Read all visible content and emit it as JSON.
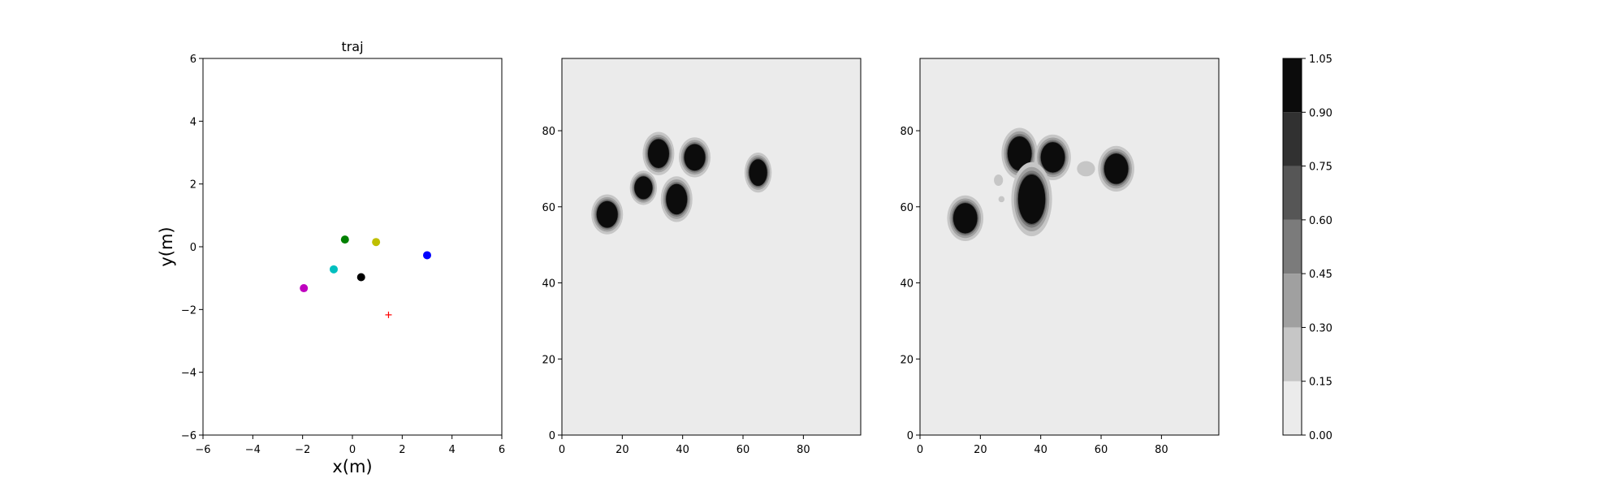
{
  "chart_data": [
    {
      "type": "scatter",
      "title": "traj",
      "xlabel": "x(m)",
      "ylabel": "y(m)",
      "xlim": [
        -6,
        6
      ],
      "ylim": [
        -6,
        6
      ],
      "xticks": [
        "−6",
        "−4",
        "−2",
        "0",
        "2",
        "4",
        "6"
      ],
      "yticks": [
        "−6",
        "−4",
        "−2",
        "0",
        "2",
        "4",
        "6"
      ],
      "grid": false,
      "points": [
        {
          "x": -0.3,
          "y": 0.23,
          "color": "#008000",
          "marker": "circle"
        },
        {
          "x": 0.95,
          "y": 0.15,
          "color": "#bfbf00",
          "marker": "circle"
        },
        {
          "x": 3.0,
          "y": -0.27,
          "color": "#0000ff",
          "marker": "circle"
        },
        {
          "x": -0.75,
          "y": -0.72,
          "color": "#00bfbf",
          "marker": "circle"
        },
        {
          "x": 0.35,
          "y": -0.97,
          "color": "#000000",
          "marker": "circle"
        },
        {
          "x": -1.95,
          "y": -1.32,
          "color": "#bf00bf",
          "marker": "circle"
        },
        {
          "x": 1.45,
          "y": -2.17,
          "color": "#ff0000",
          "marker": "plus"
        }
      ]
    },
    {
      "type": "heatmap",
      "title": "",
      "xlim": [
        0,
        99
      ],
      "ylim": [
        0,
        99
      ],
      "xticks": [
        "0",
        "20",
        "40",
        "60",
        "80"
      ],
      "yticks": [
        "0",
        "20",
        "40",
        "60",
        "80"
      ],
      "background_value": 0.05,
      "blobs": [
        {
          "x": 15,
          "y": 58,
          "rx": 3.5,
          "ry": 3.5,
          "value": 1.0
        },
        {
          "x": 27,
          "y": 65,
          "rx": 3.0,
          "ry": 3.0,
          "value": 1.0
        },
        {
          "x": 32,
          "y": 74,
          "rx": 3.5,
          "ry": 3.8,
          "value": 1.0
        },
        {
          "x": 38,
          "y": 62,
          "rx": 3.5,
          "ry": 4.0,
          "value": 1.0
        },
        {
          "x": 44,
          "y": 73,
          "rx": 3.5,
          "ry": 3.5,
          "value": 1.0
        },
        {
          "x": 65,
          "y": 69,
          "rx": 3.0,
          "ry": 3.5,
          "value": 1.0
        }
      ]
    },
    {
      "type": "heatmap",
      "title": "",
      "xlim": [
        0,
        99
      ],
      "ylim": [
        0,
        99
      ],
      "xticks": [
        "0",
        "20",
        "40",
        "60",
        "80"
      ],
      "yticks": [
        "0",
        "20",
        "40",
        "60",
        "80"
      ],
      "background_value": 0.05,
      "blobs": [
        {
          "x": 15,
          "y": 57,
          "rx": 4.0,
          "ry": 4.0,
          "value": 1.0
        },
        {
          "x": 33,
          "y": 74,
          "rx": 4.0,
          "ry": 4.5,
          "value": 1.0
        },
        {
          "x": 44,
          "y": 73,
          "rx": 4.0,
          "ry": 4.0,
          "value": 1.0
        },
        {
          "x": 37,
          "y": 62,
          "rx": 4.5,
          "ry": 6.5,
          "value": 1.0
        },
        {
          "x": 65,
          "y": 70,
          "rx": 4.0,
          "ry": 4.0,
          "value": 1.0
        },
        {
          "x": 55,
          "y": 70,
          "rx": 3.0,
          "ry": 2.0,
          "value": 0.25
        },
        {
          "x": 26,
          "y": 67,
          "rx": 1.5,
          "ry": 1.5,
          "value": 0.25
        },
        {
          "x": 27,
          "y": 62,
          "rx": 1.0,
          "ry": 0.8,
          "value": 0.25
        }
      ]
    }
  ],
  "colorbar": {
    "levels": [
      "0.00",
      "0.15",
      "0.30",
      "0.45",
      "0.60",
      "0.75",
      "0.90",
      "1.05"
    ],
    "colors": [
      "#ebebeb",
      "#c6c6c6",
      "#a0a0a0",
      "#7b7b7b",
      "#565656",
      "#313131",
      "#0c0c0c"
    ]
  }
}
